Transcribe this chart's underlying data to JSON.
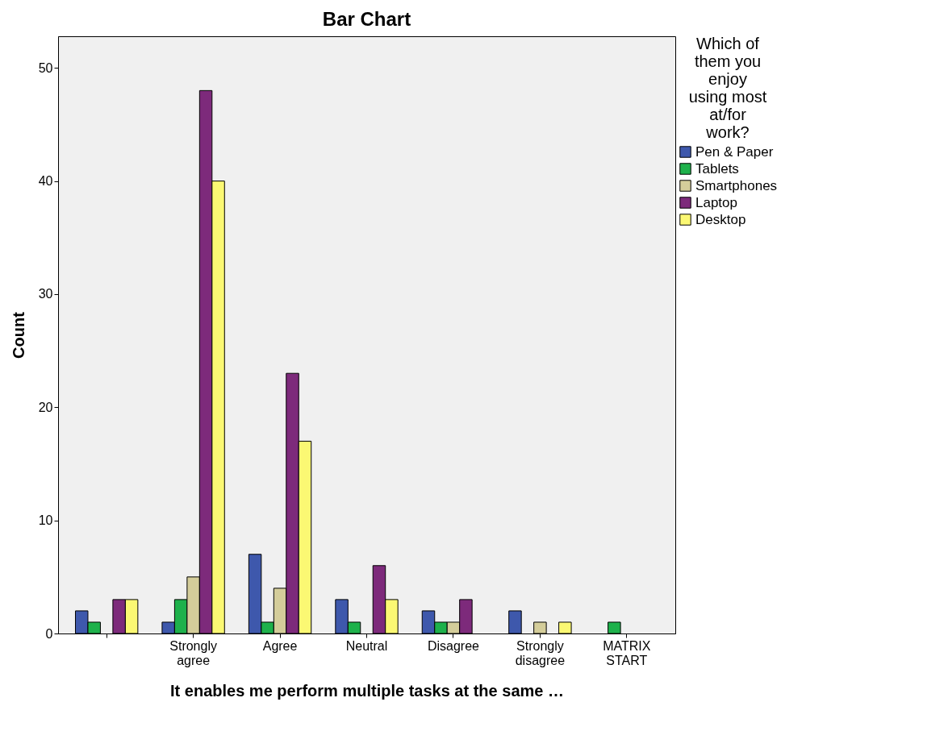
{
  "chart_data": {
    "type": "bar",
    "title": "Bar Chart",
    "xlabel": "It enables me perform multiple tasks at the same …",
    "ylabel": "Count",
    "legend_title": "Which of them you enjoy using most at/for work?",
    "legend": "top right",
    "grid": false,
    "categories": [
      null,
      "Strongly agree",
      "Agree",
      "Neutral",
      "Disagree",
      "Strongly disagree",
      "MATRIX START"
    ],
    "ylim": [
      0,
      52.8
    ],
    "yticks": [
      0,
      10,
      20,
      30,
      40,
      50
    ],
    "series": [
      {
        "name": "Pen & Paper",
        "color": "#3e58ac",
        "values": [
          2,
          1,
          7,
          3,
          2,
          2,
          null
        ]
      },
      {
        "name": "Tablets",
        "color": "#1eb14b",
        "values": [
          1,
          3,
          1,
          1,
          1,
          null,
          1
        ]
      },
      {
        "name": "Smartphones",
        "color": "#d4cd9a",
        "values": [
          null,
          5,
          4,
          null,
          1,
          1,
          null
        ]
      },
      {
        "name": "Laptop",
        "color": "#7d2a7b",
        "values": [
          3,
          48,
          23,
          6,
          3,
          null,
          null
        ]
      },
      {
        "name": "Desktop",
        "color": "#fbf873",
        "values": [
          3,
          40,
          17,
          3,
          null,
          1,
          null
        ]
      }
    ]
  }
}
